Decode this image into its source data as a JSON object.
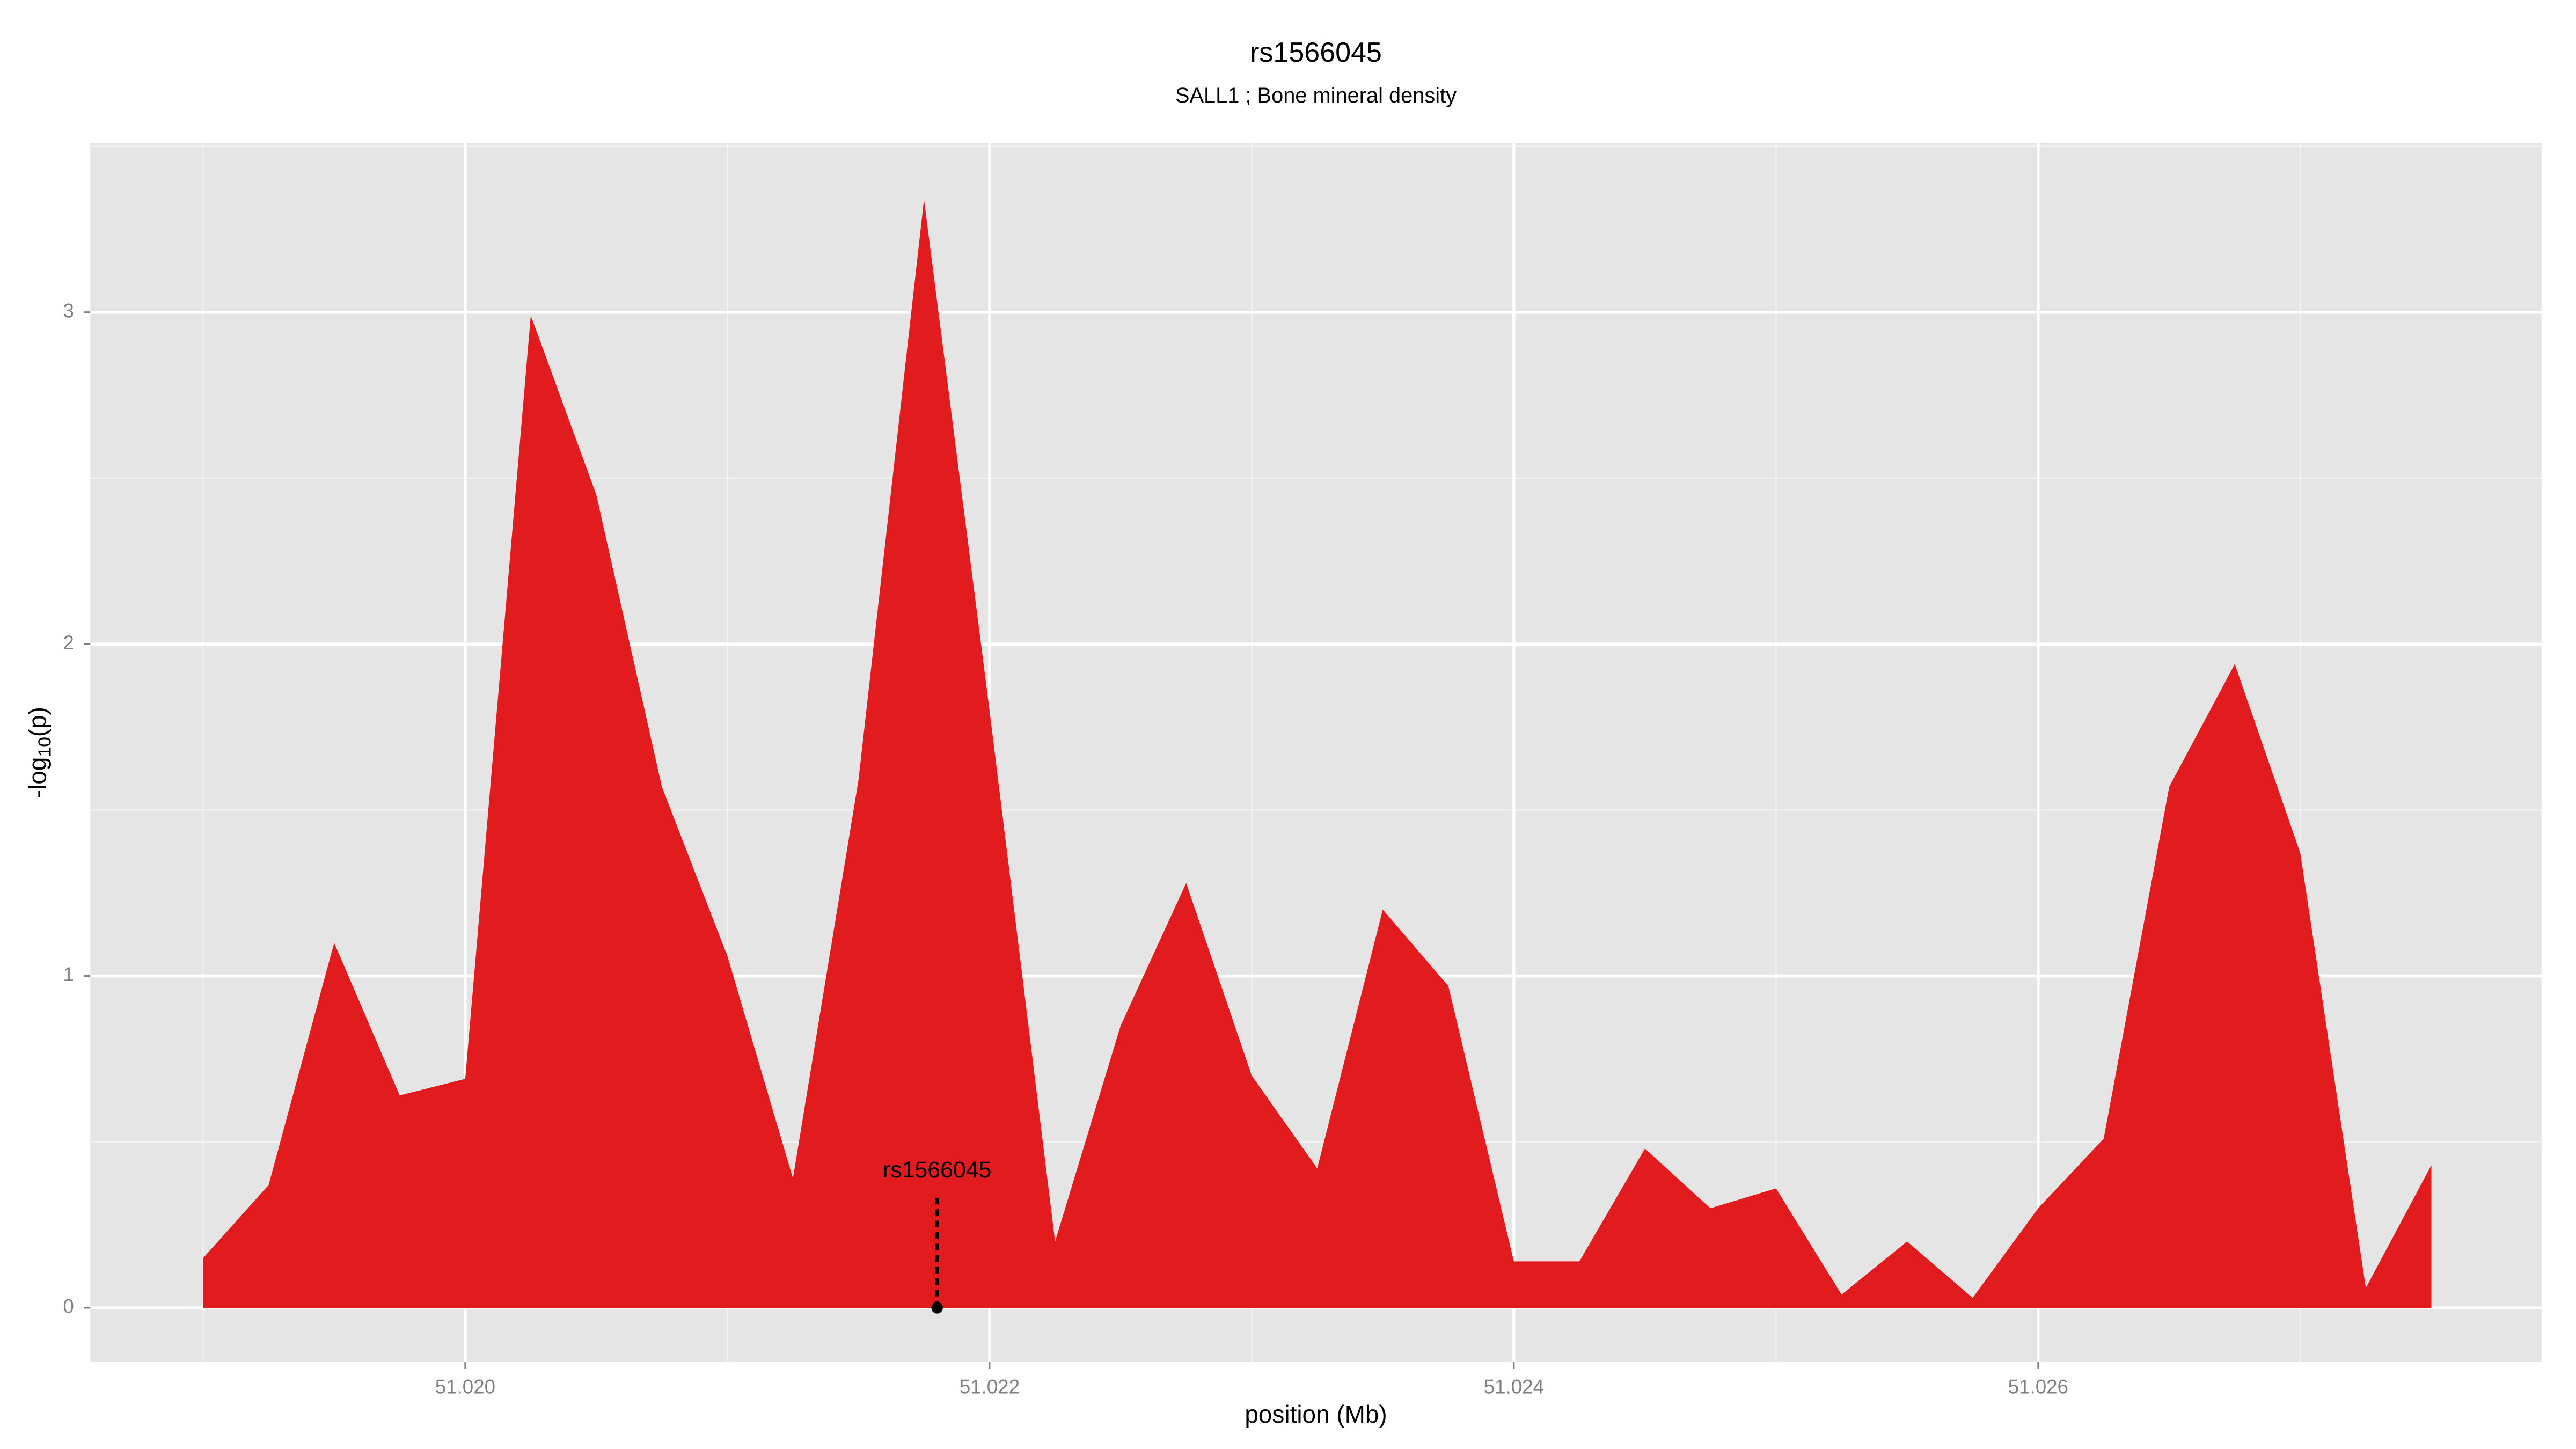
{
  "chart_data": {
    "type": "area",
    "title": "rs1566045",
    "subtitle": "SALL1 ; Bone mineral density",
    "xlabel": "position (Mb)",
    "ylabel": [
      "-log",
      "10",
      "(p)"
    ],
    "x": [
      51.019,
      51.01925,
      51.0195,
      51.01975,
      51.02,
      51.02025,
      51.0205,
      51.02075,
      51.021,
      51.02125,
      51.0215,
      51.02175,
      51.022,
      51.02225,
      51.0225,
      51.02275,
      51.023,
      51.02325,
      51.0235,
      51.02375,
      51.024,
      51.02425,
      51.0245,
      51.02475,
      51.025,
      51.02525,
      51.0255,
      51.02575,
      51.026,
      51.02625,
      51.0265,
      51.02675,
      51.027,
      51.02725,
      51.0275
    ],
    "values": [
      0.15,
      0.37,
      1.1,
      0.64,
      0.69,
      2.99,
      2.45,
      1.57,
      1.06,
      0.39,
      1.59,
      3.34,
      1.8,
      0.2,
      0.85,
      1.28,
      0.7,
      0.42,
      1.2,
      0.97,
      0.14,
      0.14,
      0.48,
      0.3,
      0.36,
      0.04,
      0.2,
      0.03,
      0.3,
      0.51,
      1.57,
      1.94,
      1.37,
      0.06,
      0.43
    ],
    "color": "#e21b1e",
    "xlim": [
      51.01857,
      51.02792
    ],
    "ylim": [
      -0.163,
      3.51
    ],
    "xticks": [
      {
        "value": 51.02,
        "label": "51.020"
      },
      {
        "value": 51.022,
        "label": "51.022"
      },
      {
        "value": 51.024,
        "label": "51.024"
      },
      {
        "value": 51.026,
        "label": "51.026"
      }
    ],
    "yticks": [
      0,
      1,
      2,
      3
    ],
    "xminor": [
      51.019,
      51.021,
      51.023,
      51.025,
      51.027
    ],
    "yminor": [
      0.5,
      1.5,
      2.5,
      3.5
    ],
    "annotations": [
      {
        "text": "rs1566045",
        "x": 51.0218,
        "y": 0
      }
    ],
    "grid": true
  }
}
